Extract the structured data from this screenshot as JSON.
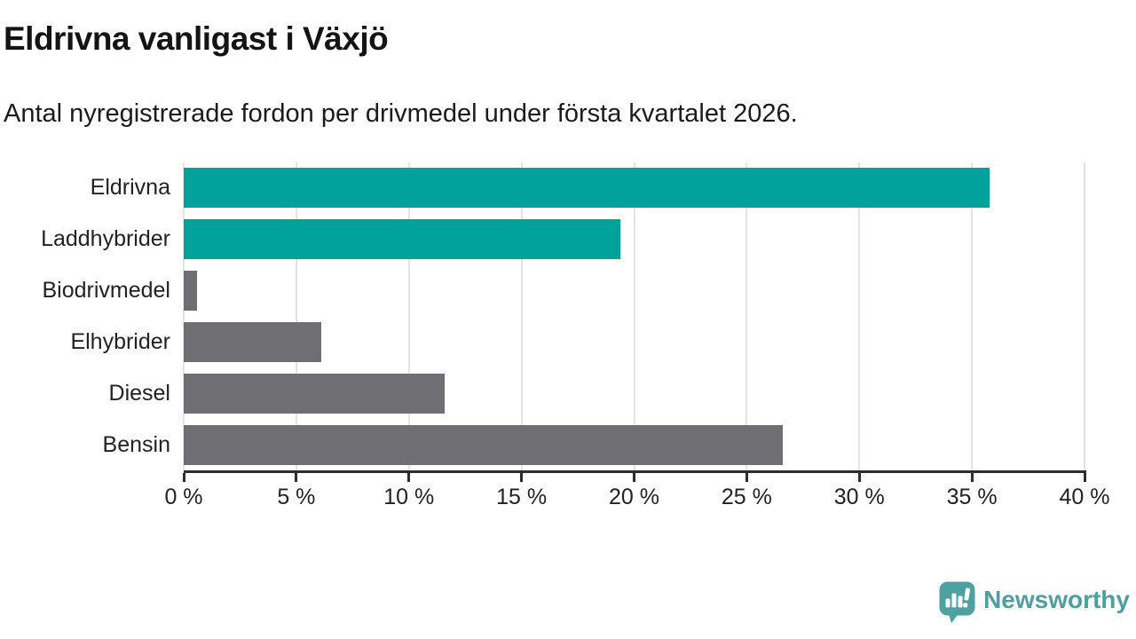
{
  "header": {
    "title": "Eldrivna vanligast i Växjö",
    "subtitle": "Antal nyregistrerade fordon per drivmedel under första kvartalet 2026."
  },
  "chart_data": {
    "type": "bar",
    "orientation": "horizontal",
    "title": "Eldrivna vanligast i Växjö",
    "subtitle": "Antal nyregistrerade fordon per drivmedel under första kvartalet 2026.",
    "categories": [
      "Eldrivna",
      "Laddhybrider",
      "Biodrivmedel",
      "Elhybrider",
      "Diesel",
      "Bensin"
    ],
    "values": [
      35.8,
      19.4,
      0.6,
      6.1,
      11.6,
      26.6
    ],
    "unit": "%",
    "xlim": [
      0,
      40
    ],
    "x_tick_values": [
      0,
      5,
      10,
      15,
      20,
      25,
      30,
      35,
      40
    ],
    "x_tick_labels": [
      "0 %",
      "5 %",
      "10 %",
      "15 %",
      "20 %",
      "25 %",
      "30 %",
      "35 %",
      "40 %"
    ],
    "bar_colors": [
      "#00A29B",
      "#00A29B",
      "#6E6E73",
      "#6E6E73",
      "#6E6E73",
      "#6E6E73"
    ],
    "grid": "vertical-gridlines",
    "legend": "none",
    "ylabel": "",
    "xlabel": ""
  },
  "footer": {
    "brand": "Newsworthy"
  },
  "colors": {
    "accent_teal": "#00A29B",
    "neutral_gray": "#6E6E73",
    "logo_teal": "#4DA1A1",
    "logo_text": "#4E9FA0",
    "gridline": "#E4E4E4",
    "axis": "#2D2D2D",
    "text": "#222222",
    "background": "#FFFFFF"
  }
}
